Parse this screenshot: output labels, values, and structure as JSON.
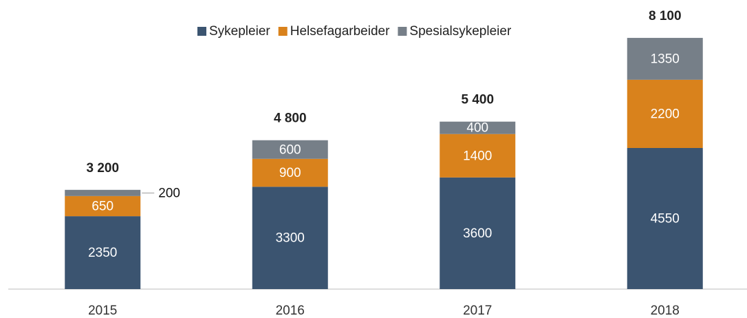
{
  "chart_data": {
    "type": "stacked_bar",
    "categories": [
      "2015",
      "2016",
      "2017",
      "2018"
    ],
    "series": [
      {
        "name": "Sykepleier",
        "color": "#3b5470",
        "values": [
          2350,
          3300,
          3600,
          4550
        ]
      },
      {
        "name": "Helsefagarbeider",
        "color": "#d9821c",
        "values": [
          650,
          900,
          1400,
          2200
        ]
      },
      {
        "name": "Spesialsykepleier",
        "color": "#767f88",
        "values": [
          200,
          600,
          400,
          1350
        ]
      }
    ],
    "totals": {
      "values": [
        3200,
        4800,
        5400,
        8100
      ],
      "value_labels": [
        "3 200",
        "4 800",
        "5 400",
        "8 100"
      ]
    },
    "ylim": [
      0,
      9000
    ],
    "legend": "top"
  }
}
